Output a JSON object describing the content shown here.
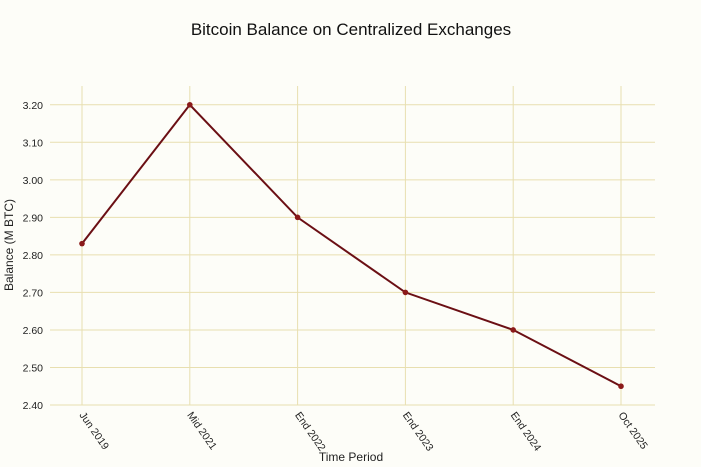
{
  "chart_data": {
    "type": "line",
    "title": "Bitcoin Balance on Centralized Exchanges",
    "xlabel": "Time Period",
    "ylabel": "Balance (M BTC)",
    "categories": [
      "Jun 2019",
      "Mid 2021",
      "End 2022",
      "End 2023",
      "End 2024",
      "Oct 2025"
    ],
    "values": [
      2.83,
      3.2,
      2.9,
      2.7,
      2.6,
      2.45
    ],
    "ylim": [
      2.4,
      3.25
    ],
    "yticks": [
      "2.40",
      "2.50",
      "2.60",
      "2.70",
      "2.80",
      "2.90",
      "3.00",
      "3.10",
      "3.20"
    ],
    "grid": true,
    "colors": {
      "line": "#6b0f14",
      "marker": "#8b1a1a",
      "grid": "#e8dfb0",
      "background": "#fdfdf8"
    }
  }
}
